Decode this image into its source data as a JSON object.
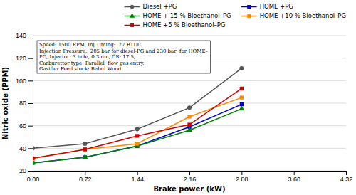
{
  "chart_data": {
    "type": "line",
    "xlabel": "Brake power (kW)",
    "ylabel": "Nitric oxide (PPM)",
    "x": [
      0,
      0.72,
      1.44,
      2.16,
      2.88
    ],
    "series": [
      {
        "name": "Diesel +PG",
        "color": "#555555",
        "marker": "circle",
        "line_style": "solid",
        "values": [
          40,
          44,
          57,
          76,
          111
        ]
      },
      {
        "name": "HOME +PG",
        "color": "#0000cc",
        "marker": "square",
        "line_style": "solid",
        "values": [
          27,
          32,
          42,
          59,
          79
        ]
      },
      {
        "name": "HOME + 15 % Bioethanol–PG",
        "color": "#008000",
        "marker": "triangle-up",
        "line_style": "solid",
        "values": [
          27,
          32,
          42,
          56,
          75
        ]
      },
      {
        "name": "HOME +10 % Bioethanol–PG",
        "color": "#ff8800",
        "marker": "square",
        "line_style": "solid",
        "values": [
          31,
          39,
          44,
          68,
          85
        ]
      },
      {
        "name": "HOME +5 % Bioethanol–PG",
        "color": "#cc0000",
        "marker": "square",
        "line_style": "solid",
        "values": [
          31,
          39,
          51,
          61,
          93
        ]
      }
    ],
    "xlim": [
      0,
      4.32
    ],
    "ylim": [
      20,
      140
    ],
    "xticks": [
      {
        "value": 0,
        "label": "0.00"
      },
      0.72,
      1.44,
      2.16,
      2.88,
      {
        "value": 3.6,
        "label": "3.60"
      },
      4.32
    ],
    "yticks": [
      20,
      40,
      60,
      80,
      100,
      120,
      140
    ],
    "grid": "y",
    "legend": "top",
    "annotation": "Speed: 1500 RPM, Inj.Timing:  27 BTDC\nInjection Pressure:  205 bar for diesel-PG and 230 bar  for HOME–\nPG, Injector: 3 hole, 0.3mm, CR: 17.5,\nCarburettor type: Parallel  flow gas entry,\nGasifier Feed stock: Babul Wood"
  }
}
